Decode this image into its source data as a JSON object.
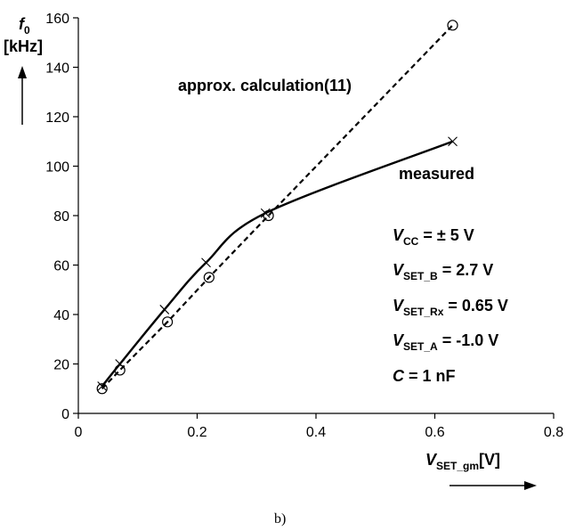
{
  "chart_data": {
    "type": "line",
    "title": "",
    "xlim": [
      0,
      0.8
    ],
    "ylim": [
      0,
      160
    ],
    "x_ticks": [
      0,
      0.2,
      0.4,
      0.6,
      0.8
    ],
    "y_ticks": [
      0,
      20,
      40,
      60,
      80,
      100,
      120,
      140,
      160
    ],
    "x_tick_labels": [
      "0",
      "0.2",
      "0.4",
      "0.6",
      "0.8"
    ],
    "y_tick_labels": [
      "0",
      "20",
      "40",
      "60",
      "80",
      "100",
      "120",
      "140",
      "160"
    ],
    "xlabel": {
      "main": "V",
      "sub": "SET_gm",
      "unit": "[V]"
    },
    "ylabel": {
      "main": "f",
      "sub": "0",
      "unit": "[kHz]"
    },
    "grid": false,
    "series": [
      {
        "name": "approx. calculation(11)",
        "style": "dashed",
        "marker": "circle",
        "x": [
          0.04,
          0.07,
          0.15,
          0.22,
          0.32,
          0.63
        ],
        "y": [
          10,
          17.5,
          37,
          55,
          80,
          157
        ]
      },
      {
        "name": "measured",
        "style": "solid",
        "marker": "x",
        "x": [
          0.04,
          0.07,
          0.145,
          0.215,
          0.315,
          0.63
        ],
        "y": [
          11,
          20,
          42,
          61,
          81,
          110
        ]
      }
    ],
    "annotations": [
      {
        "main": "V",
        "sub": "CC",
        "rest": " = ± 5 V"
      },
      {
        "main": "V",
        "sub": "SET_B",
        "rest": " = 2.7 V"
      },
      {
        "main": "V",
        "sub": "SET_Rx",
        "rest": " = 0.65 V"
      },
      {
        "main": "V",
        "sub": "SET_A",
        "rest": " = -1.0 V"
      },
      {
        "main": "C",
        "sub": "",
        "rest": " = 1 nF"
      }
    ]
  },
  "caption": "b)",
  "colors": {
    "ink": "#000000",
    "background": "#ffffff"
  }
}
